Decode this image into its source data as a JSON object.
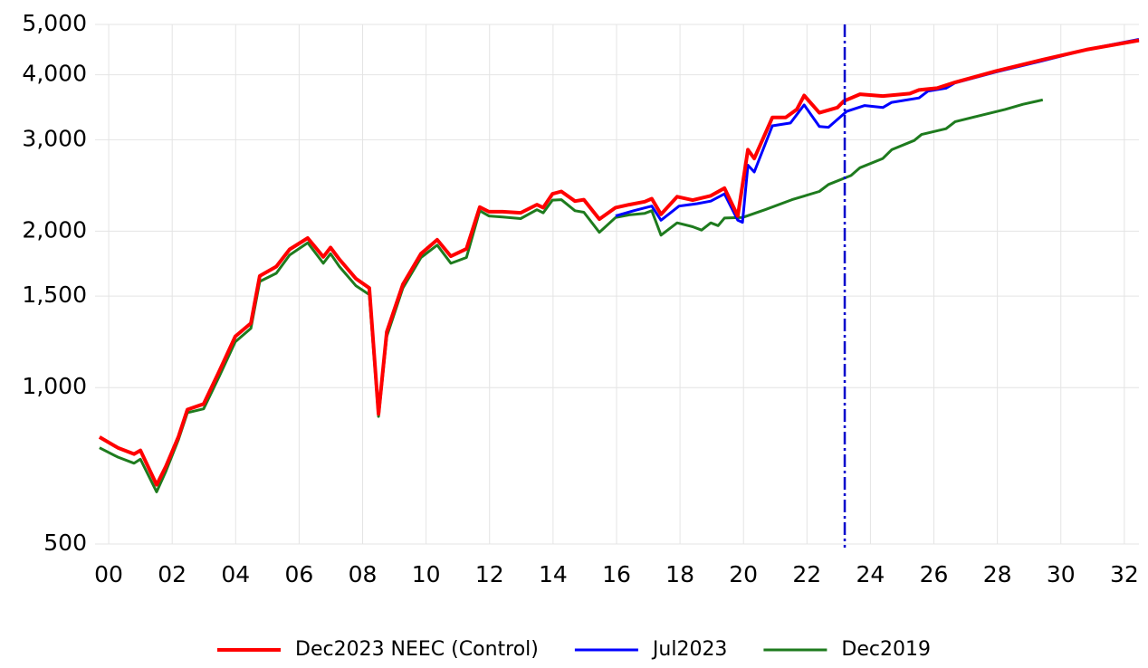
{
  "chart_data": {
    "type": "line",
    "log_y": true,
    "grid": true,
    "legend": "bottom",
    "xlim": [
      1999.57,
      2032.46
    ],
    "xticks": [
      {
        "value": 2000,
        "label": "00"
      },
      {
        "value": 2002,
        "label": "02"
      },
      {
        "value": 2004,
        "label": "04"
      },
      {
        "value": 2006,
        "label": "06"
      },
      {
        "value": 2008,
        "label": "08"
      },
      {
        "value": 2010,
        "label": "10"
      },
      {
        "value": 2012,
        "label": "12"
      },
      {
        "value": 2014,
        "label": "14"
      },
      {
        "value": 2016,
        "label": "16"
      },
      {
        "value": 2018,
        "label": "18"
      },
      {
        "value": 2020,
        "label": "20"
      },
      {
        "value": 2022,
        "label": "22"
      },
      {
        "value": 2024,
        "label": "24"
      },
      {
        "value": 2026,
        "label": "26"
      },
      {
        "value": 2028,
        "label": "28"
      },
      {
        "value": 2030,
        "label": "30"
      },
      {
        "value": 2032,
        "label": "32"
      }
    ],
    "ylim": [
      500,
      5000
    ],
    "yticks": [
      500,
      {
        "value": 1000,
        "label": "1,000"
      },
      {
        "value": 1500,
        "label": "1,500"
      },
      {
        "value": 2000,
        "label": "2,000"
      },
      {
        "value": 3000,
        "label": "3,000"
      },
      {
        "value": 4000,
        "label": "4,000"
      },
      {
        "value": 5000,
        "label": "5,000"
      }
    ],
    "vline": {
      "x": 2023.19,
      "color": "#0000cc"
    },
    "series": [
      {
        "name": "Dec2023 NEEC (Control)",
        "color": "#ff0000",
        "x": [
          1999.71,
          2000.29,
          2000.8,
          2001.0,
          2001.51,
          2001.8,
          2002.2,
          2002.48,
          2002.99,
          2003.48,
          2003.99,
          2004.48,
          2004.76,
          2005.28,
          2005.7,
          2006.27,
          2006.76,
          2006.99,
          2007.27,
          2007.79,
          2008.21,
          2008.5,
          2008.76,
          2009.27,
          2009.84,
          2010.35,
          2010.78,
          2011.27,
          2011.69,
          2011.98,
          2012.41,
          2012.98,
          2013.49,
          2013.69,
          2013.98,
          2014.26,
          2014.69,
          2014.97,
          2015.46,
          2015.97,
          2016.4,
          2016.89,
          2017.11,
          2017.4,
          2017.91,
          2018.4,
          2018.97,
          2019.4,
          2019.82,
          2020.14,
          2020.34,
          2020.91,
          2021.33,
          2021.68,
          2021.91,
          2022.39,
          2022.96,
          2023.16,
          2023.67,
          2024.39,
          2025.24,
          2025.53,
          2026.1,
          2026.67,
          2027.95,
          2029.38,
          2030.8,
          2032.46
        ],
        "values": [
          803,
          766,
          745,
          757,
          650,
          705,
          805,
          907,
          930,
          1075,
          1255,
          1330,
          1640,
          1710,
          1845,
          1940,
          1785,
          1860,
          1765,
          1620,
          1555,
          890,
          1280,
          1580,
          1810,
          1925,
          1790,
          1850,
          2225,
          2180,
          2180,
          2170,
          2250,
          2220,
          2360,
          2385,
          2285,
          2300,
          2110,
          2220,
          2250,
          2280,
          2310,
          2155,
          2330,
          2295,
          2340,
          2420,
          2140,
          2870,
          2760,
          3310,
          3310,
          3430,
          3650,
          3380,
          3460,
          3560,
          3670,
          3640,
          3680,
          3740,
          3770,
          3870,
          4065,
          4270,
          4470,
          4660
        ]
      },
      {
        "name": "Jul2023",
        "color": "#0000ff",
        "x": [
          2015.97,
          2016.54,
          2017.11,
          2017.4,
          2017.97,
          2018.54,
          2018.97,
          2019.4,
          2019.82,
          2019.97,
          2020.14,
          2020.34,
          2020.91,
          2021.48,
          2021.91,
          2022.39,
          2022.68,
          2023.25,
          2023.82,
          2024.39,
          2024.67,
          2025.53,
          2025.81,
          2026.38,
          2026.67,
          2027.95,
          2029.38,
          2030.8,
          2032.46
        ],
        "values": [
          2140,
          2190,
          2235,
          2100,
          2235,
          2260,
          2285,
          2360,
          2100,
          2080,
          2680,
          2600,
          3190,
          3230,
          3500,
          3180,
          3170,
          3400,
          3490,
          3460,
          3540,
          3610,
          3720,
          3770,
          3860,
          4050,
          4250,
          4470,
          4680
        ]
      },
      {
        "name": "Dec2019",
        "color": "#1e7b1e",
        "x": [
          1999.71,
          2000.29,
          2000.8,
          2001.0,
          2001.51,
          2001.8,
          2002.2,
          2002.48,
          2002.99,
          2003.48,
          2003.99,
          2004.48,
          2004.76,
          2005.28,
          2005.7,
          2006.27,
          2006.76,
          2006.99,
          2007.27,
          2007.79,
          2008.21,
          2008.5,
          2008.76,
          2009.27,
          2009.84,
          2010.35,
          2010.78,
          2011.27,
          2011.69,
          2011.98,
          2012.41,
          2012.98,
          2013.49,
          2013.69,
          2013.98,
          2014.26,
          2014.69,
          2014.97,
          2015.46,
          2015.97,
          2016.4,
          2016.89,
          2017.11,
          2017.4,
          2017.91,
          2018.4,
          2018.68,
          2018.97,
          2019.2,
          2019.4,
          2019.97,
          2020.68,
          2021.53,
          2022.39,
          2022.68,
          2023.39,
          2023.67,
          2024.39,
          2024.67,
          2025.38,
          2025.61,
          2026.38,
          2026.67,
          2027.38,
          2028.24,
          2028.81,
          2029.43
        ],
        "values": [
          766,
          735,
          715,
          728,
          630,
          690,
          795,
          895,
          910,
          1050,
          1225,
          1300,
          1600,
          1660,
          1800,
          1900,
          1735,
          1810,
          1710,
          1570,
          1510,
          880,
          1255,
          1555,
          1780,
          1880,
          1735,
          1780,
          2190,
          2140,
          2130,
          2115,
          2200,
          2170,
          2295,
          2300,
          2190,
          2175,
          1990,
          2125,
          2150,
          2165,
          2190,
          1965,
          2075,
          2040,
          2010,
          2075,
          2050,
          2120,
          2125,
          2200,
          2300,
          2385,
          2460,
          2560,
          2650,
          2760,
          2870,
          2990,
          3070,
          3150,
          3250,
          3330,
          3430,
          3510,
          3580
        ]
      }
    ]
  }
}
